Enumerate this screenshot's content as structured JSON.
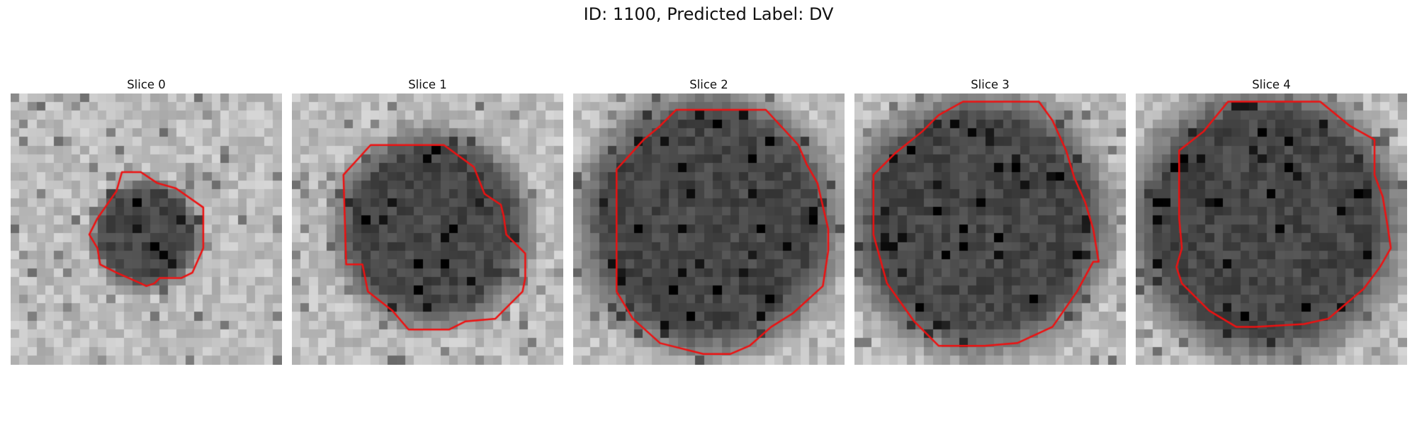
{
  "figure": {
    "title": "ID: 1100, Predicted Label: DV"
  },
  "panels": [
    {
      "title": "Slice 0"
    },
    {
      "title": "Slice 1"
    },
    {
      "title": "Slice 2"
    },
    {
      "title": "Slice 3"
    },
    {
      "title": "Slice 4"
    }
  ],
  "colors": {
    "contour": "#ee1111",
    "background": "#ffffff"
  }
}
